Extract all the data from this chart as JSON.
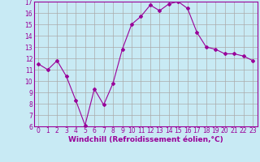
{
  "x": [
    0,
    1,
    2,
    3,
    4,
    5,
    6,
    7,
    8,
    9,
    10,
    11,
    12,
    13,
    14,
    15,
    16,
    17,
    18,
    19,
    20,
    21,
    22,
    23
  ],
  "y": [
    11.5,
    11.0,
    11.8,
    10.4,
    8.3,
    6.1,
    9.3,
    7.9,
    9.8,
    12.8,
    15.0,
    15.7,
    16.7,
    16.2,
    16.8,
    17.0,
    16.4,
    14.3,
    13.0,
    12.8,
    12.4,
    12.4,
    12.2,
    11.8
  ],
  "color": "#990099",
  "bg_color": "#c8eaf4",
  "grid_color": "#aaaaaa",
  "xlabel": "Windchill (Refroidissement éolien,°C)",
  "ylim": [
    6,
    17
  ],
  "xlim": [
    -0.5,
    23.5
  ],
  "yticks": [
    6,
    7,
    8,
    9,
    10,
    11,
    12,
    13,
    14,
    15,
    16,
    17
  ],
  "xticks": [
    0,
    1,
    2,
    3,
    4,
    5,
    6,
    7,
    8,
    9,
    10,
    11,
    12,
    13,
    14,
    15,
    16,
    17,
    18,
    19,
    20,
    21,
    22,
    23
  ],
  "tick_fontsize": 5.5,
  "xlabel_fontsize": 6.5,
  "marker": "D",
  "markersize": 2.0,
  "linewidth": 0.8
}
